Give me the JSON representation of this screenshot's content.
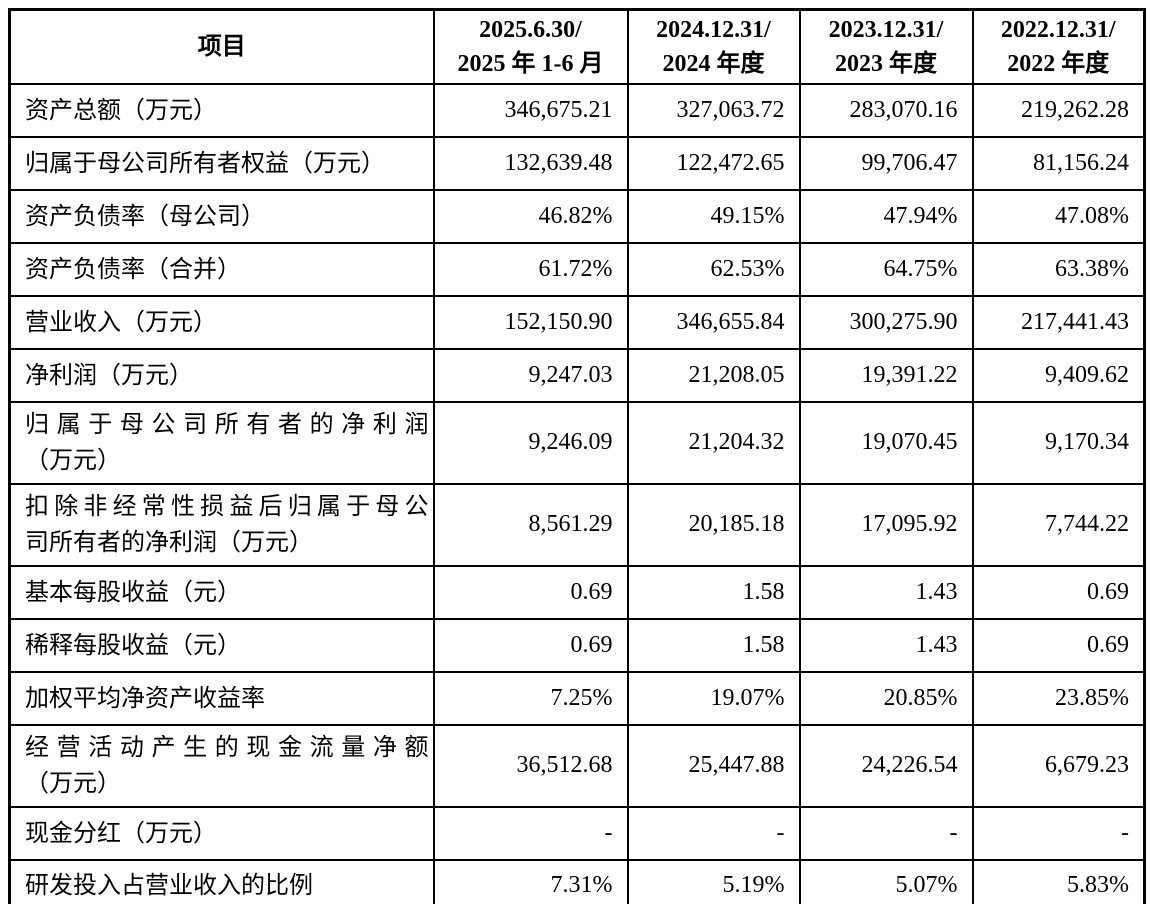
{
  "table": {
    "border_color": "#000000",
    "text_color": "#000000",
    "background_color": "#ffffff",
    "header": {
      "item_label": "项目",
      "periods": [
        {
          "line1": "2025.6.30/",
          "line2": "2025 年 1-6 月"
        },
        {
          "line1": "2024.12.31/",
          "line2": "2024 年度"
        },
        {
          "line1": "2023.12.31/",
          "line2": "2023 年度"
        },
        {
          "line1": "2022.12.31/",
          "line2": "2022 年度"
        }
      ]
    },
    "rows": [
      {
        "label": "资产总额（万元）",
        "values": [
          "346,675.21",
          "327,063.72",
          "283,070.16",
          "219,262.28"
        ]
      },
      {
        "label": "归属于母公司所有者权益（万元）",
        "values": [
          "132,639.48",
          "122,472.65",
          "99,706.47",
          "81,156.24"
        ]
      },
      {
        "label": "资产负债率（母公司）",
        "values": [
          "46.82%",
          "49.15%",
          "47.94%",
          "47.08%"
        ]
      },
      {
        "label": "资产负债率（合并）",
        "values": [
          "61.72%",
          "62.53%",
          "64.75%",
          "63.38%"
        ]
      },
      {
        "label": "营业收入（万元）",
        "values": [
          "152,150.90",
          "346,655.84",
          "300,275.90",
          "217,441.43"
        ]
      },
      {
        "label": "净利润（万元）",
        "values": [
          "9,247.03",
          "21,208.05",
          "19,391.22",
          "9,409.62"
        ]
      },
      {
        "label": "归属于母公司所有者的净利润\n（万元）",
        "values": [
          "9,246.09",
          "21,204.32",
          "19,070.45",
          "9,170.34"
        ]
      },
      {
        "label": "扣除非经常性损益后归属于母公\n司所有者的净利润（万元）",
        "values": [
          "8,561.29",
          "20,185.18",
          "17,095.92",
          "7,744.22"
        ]
      },
      {
        "label": "基本每股收益（元）",
        "values": [
          "0.69",
          "1.58",
          "1.43",
          "0.69"
        ]
      },
      {
        "label": "稀释每股收益（元）",
        "values": [
          "0.69",
          "1.58",
          "1.43",
          "0.69"
        ]
      },
      {
        "label": "加权平均净资产收益率",
        "values": [
          "7.25%",
          "19.07%",
          "20.85%",
          "23.85%"
        ]
      },
      {
        "label": "经营活动产生的现金流量净额\n（万元）",
        "values": [
          "36,512.68",
          "25,447.88",
          "24,226.54",
          "6,679.23"
        ]
      },
      {
        "label": "现金分红（万元）",
        "values": [
          "-",
          "-",
          "-",
          "-"
        ]
      },
      {
        "label": "研发投入占营业收入的比例",
        "values": [
          "7.31%",
          "5.19%",
          "5.07%",
          "5.83%"
        ]
      }
    ]
  }
}
